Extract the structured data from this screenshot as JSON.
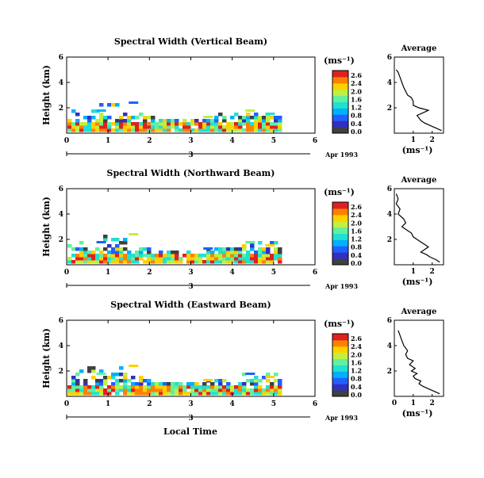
{
  "chart_data": {
    "type": "heatmap",
    "xlabel": "Local Time",
    "date_label": "Apr 1993",
    "x_ticks": [
      "0",
      "1",
      "2",
      "3",
      "4",
      "5",
      "6"
    ],
    "xlim": [
      0,
      6
    ],
    "ylim": [
      0,
      6
    ],
    "y_ticks": [
      "6",
      "4",
      "2"
    ],
    "ylabel": "Height (km)",
    "colorbar": {
      "unit": "(ms⁻¹)",
      "ticks": [
        "2.6",
        "2.4",
        "2.0",
        "1.6",
        "1.2",
        "0.8",
        "0.4",
        "0.0"
      ],
      "range": [
        0,
        2.8
      ],
      "colors": [
        "#404040",
        "#3030c0",
        "#2060ff",
        "#00b0ff",
        "#20e0d0",
        "#60f0a0",
        "#c0f040",
        "#ffd000",
        "#ff8000",
        "#e02020"
      ]
    },
    "panels": [
      {
        "title": "Spectral Width (Vertical Beam)",
        "fill": 0.25,
        "avg_title": "Average",
        "avg_unit": "(ms⁻¹)",
        "avg_x_ticks": [
          "1",
          "2"
        ],
        "avg_xlim": [
          0,
          2.6
        ],
        "avg_y_ticks": [
          "6",
          "4",
          "2"
        ],
        "avg_profile": [
          [
            2.5,
            0.2
          ],
          [
            2.2,
            0.4
          ],
          [
            1.9,
            0.6
          ],
          [
            1.6,
            0.8
          ],
          [
            1.4,
            1.0
          ],
          [
            1.3,
            1.2
          ],
          [
            1.2,
            1.4
          ],
          [
            1.5,
            1.6
          ],
          [
            1.8,
            1.8
          ],
          [
            1.3,
            2.0
          ],
          [
            1.0,
            2.2
          ],
          [
            1.0,
            2.5
          ],
          [
            0.9,
            2.8
          ],
          [
            0.7,
            3.0
          ],
          [
            0.6,
            3.3
          ],
          [
            0.5,
            3.6
          ],
          [
            0.4,
            4.0
          ],
          [
            0.3,
            4.4
          ],
          [
            0.2,
            4.8
          ],
          [
            0.1,
            5.0
          ]
        ]
      },
      {
        "title": "Spectral Width (Northward Beam)",
        "fill": 0.3,
        "avg_title": "Average",
        "avg_unit": "(ms⁻¹)",
        "avg_x_ticks": [
          "1",
          "2"
        ],
        "avg_xlim": [
          0,
          2.6
        ],
        "avg_y_ticks": [
          "6",
          "4",
          "2"
        ],
        "avg_profile": [
          [
            2.4,
            0.2
          ],
          [
            2.2,
            0.4
          ],
          [
            1.9,
            0.6
          ],
          [
            1.7,
            0.8
          ],
          [
            1.4,
            1.0
          ],
          [
            1.6,
            1.2
          ],
          [
            1.8,
            1.4
          ],
          [
            1.6,
            1.6
          ],
          [
            1.4,
            1.8
          ],
          [
            1.2,
            2.0
          ],
          [
            1.0,
            2.2
          ],
          [
            0.9,
            2.5
          ],
          [
            0.6,
            2.8
          ],
          [
            0.4,
            3.0
          ],
          [
            0.6,
            3.3
          ],
          [
            0.5,
            3.6
          ],
          [
            0.2,
            4.0
          ],
          [
            0.3,
            4.4
          ],
          [
            0.1,
            4.8
          ],
          [
            0.2,
            5.2
          ],
          [
            0.1,
            5.6
          ]
        ]
      },
      {
        "title": "Spectral Width (Eastward Beam)",
        "fill": 0.2,
        "avg_title": "Average",
        "avg_unit": "(ms⁻¹)",
        "avg_x_ticks": [
          "0",
          "1",
          "2"
        ],
        "avg_xlim": [
          0,
          2.6
        ],
        "avg_y_ticks": [
          "6",
          "4",
          "2"
        ],
        "avg_profile": [
          [
            2.4,
            0.2
          ],
          [
            2.1,
            0.4
          ],
          [
            1.8,
            0.6
          ],
          [
            1.5,
            0.8
          ],
          [
            1.3,
            1.0
          ],
          [
            1.4,
            1.2
          ],
          [
            1.1,
            1.4
          ],
          [
            1.0,
            1.6
          ],
          [
            1.2,
            1.8
          ],
          [
            0.9,
            2.0
          ],
          [
            1.1,
            2.2
          ],
          [
            0.8,
            2.5
          ],
          [
            1.0,
            2.8
          ],
          [
            0.7,
            3.0
          ],
          [
            0.6,
            3.3
          ],
          [
            0.7,
            3.6
          ],
          [
            0.5,
            4.0
          ],
          [
            0.4,
            4.4
          ],
          [
            0.3,
            4.8
          ],
          [
            0.2,
            5.2
          ]
        ]
      }
    ]
  }
}
